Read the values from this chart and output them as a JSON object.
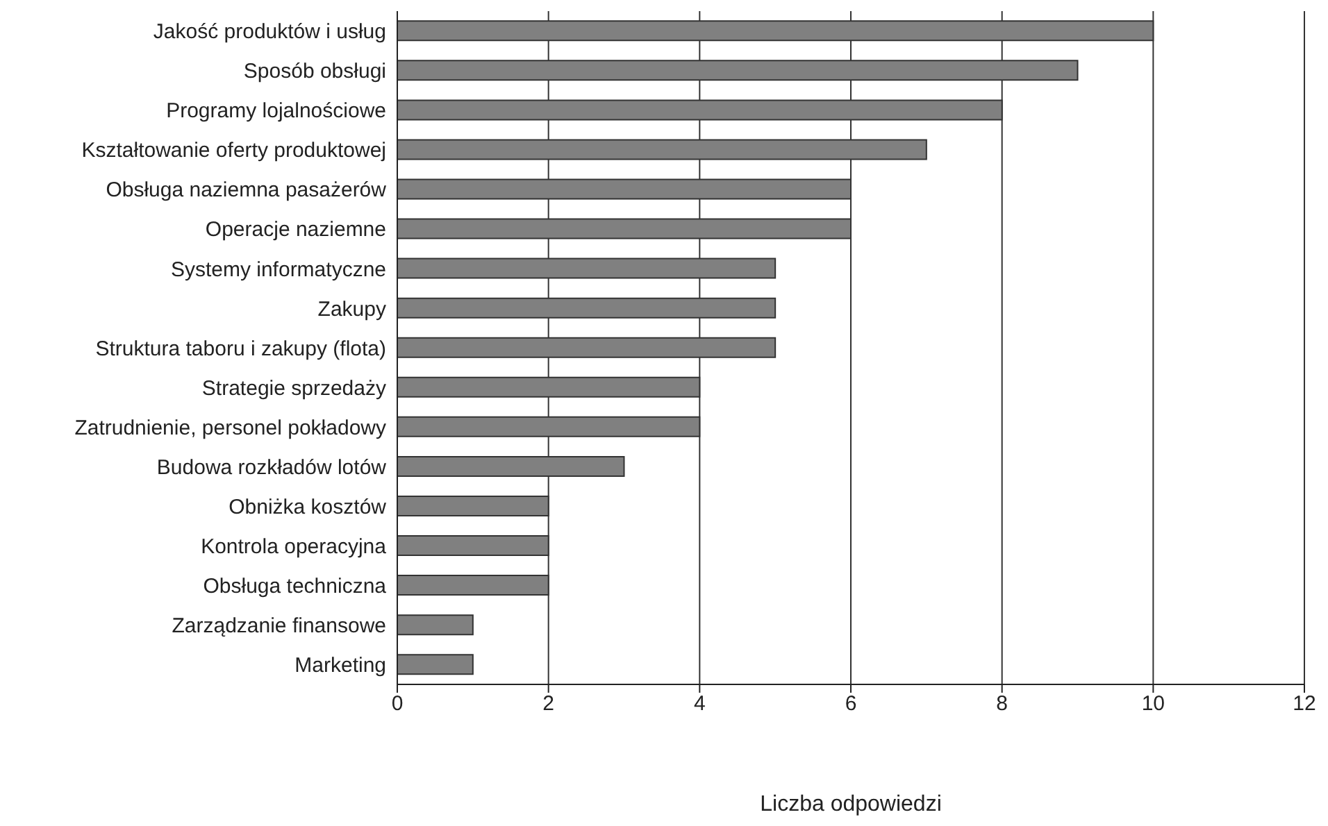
{
  "chart_data": {
    "type": "bar",
    "orientation": "horizontal",
    "xlabel": "Liczba odpowiedzi",
    "categories": [
      "Jakość produktów i usług",
      "Sposób obsługi",
      "Programy lojalnościowe",
      "Kształtowanie oferty produktowej",
      "Obsługa naziemna pasażerów",
      "Operacje naziemne",
      "Systemy informatyczne",
      "Zakupy",
      "Struktura taboru i zakupy (flota)",
      "Strategie sprzedaży",
      "Zatrudnienie, personel pokładowy",
      "Budowa rozkładów lotów",
      "Obniżka kosztów",
      "Kontrola operacyjna",
      "Obsługa techniczna",
      "Zarządzanie finansowe",
      "Marketing"
    ],
    "values": [
      10,
      9,
      8,
      7,
      6,
      6,
      5,
      5,
      5,
      4,
      4,
      3,
      2,
      2,
      2,
      1,
      1
    ],
    "color": "#808080",
    "xlim": [
      0,
      12
    ],
    "xticks": [
      0,
      2,
      4,
      6,
      8,
      10,
      12
    ],
    "grid": "x",
    "legend": false
  }
}
